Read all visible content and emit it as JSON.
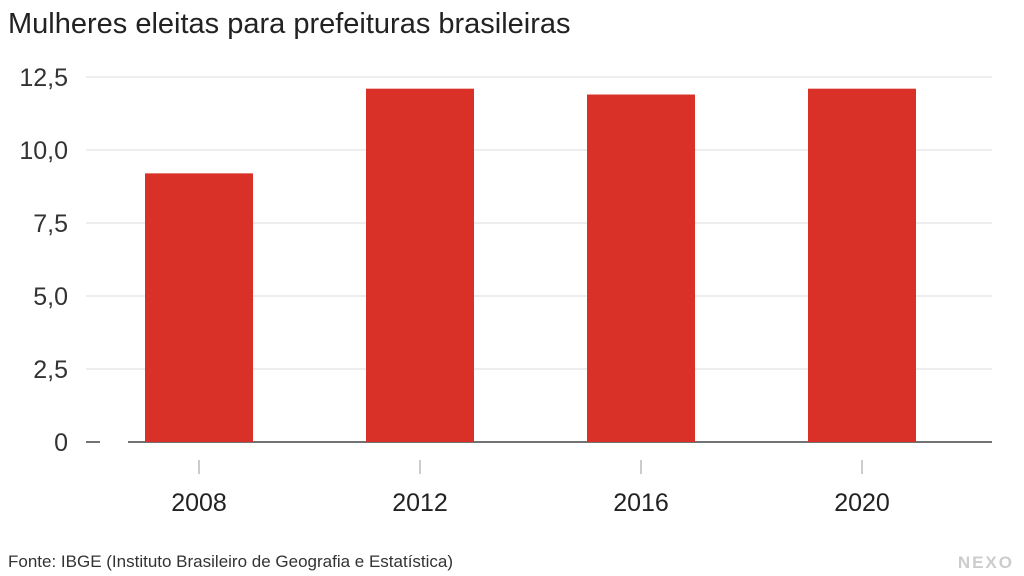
{
  "chart_data": {
    "type": "bar",
    "title": "Mulheres eleitas para prefeituras brasileiras",
    "categories": [
      "2008",
      "2012",
      "2016",
      "2020"
    ],
    "values": [
      9.2,
      12.1,
      11.9,
      12.1
    ],
    "ylim": [
      0,
      12.5
    ],
    "yticks": [
      0,
      2.5,
      5.0,
      7.5,
      10.0,
      12.5
    ],
    "ytick_labels": [
      "0",
      "2,5",
      "5,0",
      "7,5",
      "10,0",
      "12,5"
    ],
    "grid": true,
    "bar_color": "#d93127"
  },
  "footer": {
    "source": "Fonte: IBGE (Instituto Brasileiro de Geografia e Estatística)",
    "logo": "NEXO"
  }
}
